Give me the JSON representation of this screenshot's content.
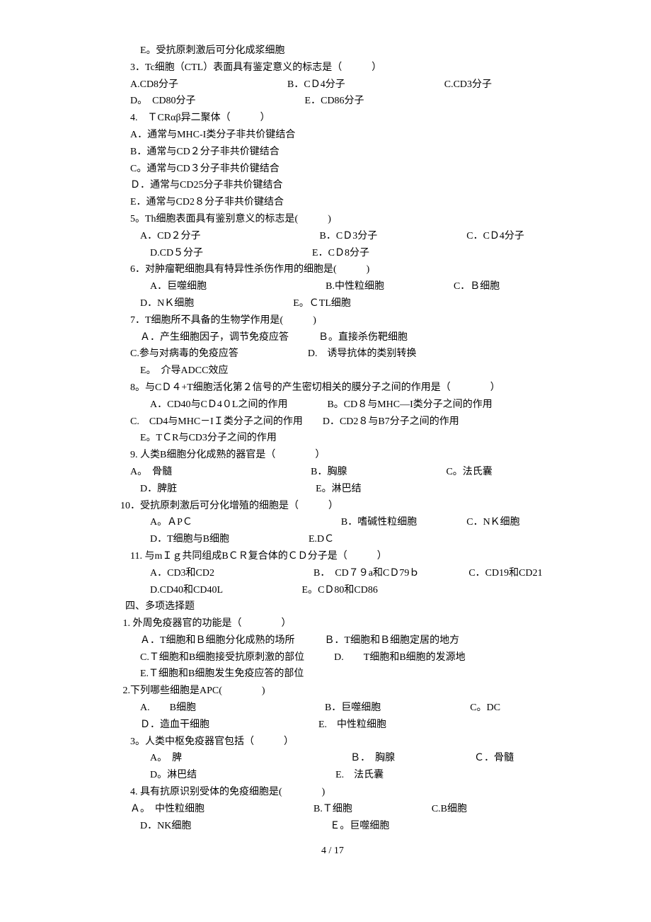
{
  "lines": {
    "l1": "　　E。受抗原刺激后可分化成浆细胞",
    "l2": "　3．Tc细胞（CTL）表面具有鉴定意义的标志是（　　　）",
    "l3": "　A.CD8分子　　　　　　　　　　　B．CＤ4分子　　　　　　　　　　C.CD3分子",
    "l4": "　D。　CD80分子　　　　　　　　　　　E．CD86分子",
    "l5": "　4.　ＴCRαβ异二聚体（　　　）",
    "l6": "　A．通常与MHC-I类分子非共价键结合",
    "l7": "　B．通常与CD２分子非共价键结合",
    "l8": "　C。通常与CD３分子非共价键结合",
    "l9": "　Ｄ．通常与CD25分子非共价键结合",
    "l10": "　E．通常与CD2８分子非共价键结合",
    "l11": "　5。Th细胞表面具有鉴别意义的标志是(　　　)",
    "l12": "　　A．CD２分子　　　　　　　　　　　　B．CＤ3分子　　　　　　　　　C．CＤ4分子",
    "l13": "　　　D.CD５分子　　　　　　　　　　　E．CＤ8分子",
    "l14": "　6．对肿瘤靶细胞具有特异性杀伤作用的细胞是(　　　)",
    "l15": "　　　A．巨噬细胞　　　　　　　　　　　　B.中性粒细胞　　　　　　　C．Ｂ细胞",
    "l16": "　　D．NＫ细胞　　　　　　　　　　E。ＣTL细胞",
    "l17": "　7．T细胞所不具备的生物学作用是(　　　)",
    "l18": "　　Ａ．产生细胞因子，调节免疫应答　　　Ｂ。直接杀伤靶细胞",
    "l19": "　C.参与对病毒的免疫应答　　　　　　　D.　诱导抗体的类别转换",
    "l20": "　　E。　介导ADCC效应",
    "l21": "　8。与CＤ４+T细胞活化第２信号的产生密切相关的膜分子之间的作用是（　　　　）",
    "l22": "　　　A．CD40与CＤ4０L之间的作用　　　　B。CD８与MHC—I类分子之间的作用",
    "l23": "　C.　CD4与MHC－IＩ类分子之间的作用　　D．CD2８与B7分子之间的作用",
    "l24": "　　E。TＣR与CD3分子之间的作用",
    "l25": "　9. 人类B细胞分化成熟的器官是（　　　　）",
    "l26": "　A。　骨髓　　　　　　　　　　　　　　B．胸腺　　　　　　　　　　C。法氏囊",
    "l27": "　　D．脾脏　　　　　　　　　　　　　　E。淋巴结",
    "l28": "10．受抗原刺激后可分化增殖的细胞是（　　　）",
    "l29": "　　　A。ＡPＣ　　　　　　　　　　　　　　　B．嗜碱性粒细胞　　　　　C．NＫ细胞",
    "l30": "　　　D．T细胞与B细胞　　　　　　　　E.DＣ",
    "l31": "　11. 与mＩｇ共同组成BＣＲ复合体的ＣＤ分子是（　　　）",
    "l32": "　　　A．CD3和CD2　　　　　　　　　　B．　CD７９a和CＤ79ｂ　　　　　C．CD19和CD21",
    "l33": "　　　D.CD40和CD40L　　　　　　　　E。CＤ80和CD86",
    "l34": "  四、多项选择题",
    "l35": " 1. 外周免疫器官的功能是（　　　　）",
    "l36": "　　Ａ．T细胞和Ｂ细胞分化成熟的场所　　　Ｂ．T细胞和Ｂ细胞定居的地方",
    "l37": "　　C.Ｔ细胞和B细胞接受抗原刺激的部位　　　D.　　T细胞和B细胞的发源地",
    "l38": "　　E.Ｔ细胞和B细胞发生免疫应答的部位",
    "l39": " 2.下列哪些细胞是APC(　　　　)",
    "l40": "　　A.　　B细胞　　　　　　　　　　　　　B．巨噬细胞　　　　　　　　　C。DC",
    "l41": "　　Ｄ．造血干细胞　　　　　　　　　　　E.　中性粒细胞",
    "l42": "　3。人类中枢免疫器官包括（　　　）",
    "l43": "　　　A。　脾　　　　　　　　　　　　　　　　　Ｂ．　胸腺　　　　　　　　Ｃ．骨髓",
    "l44": "　　　D。淋巴结　　　　　　　　　　　　　　E.　法氏囊",
    "l45": "　4. 具有抗原识别受体的免疫细胞是(　　　　)",
    "l46": "　Ａ。　中性粒细胞　　　　　　　　　　　B.Ｔ细胞　　　　　　　　C.B细胞",
    "l47": "　　D．NK细胞　　　　　　　　　　　　　　Ｅ。巨噬细胞"
  },
  "pageNumber": "4 / 17"
}
